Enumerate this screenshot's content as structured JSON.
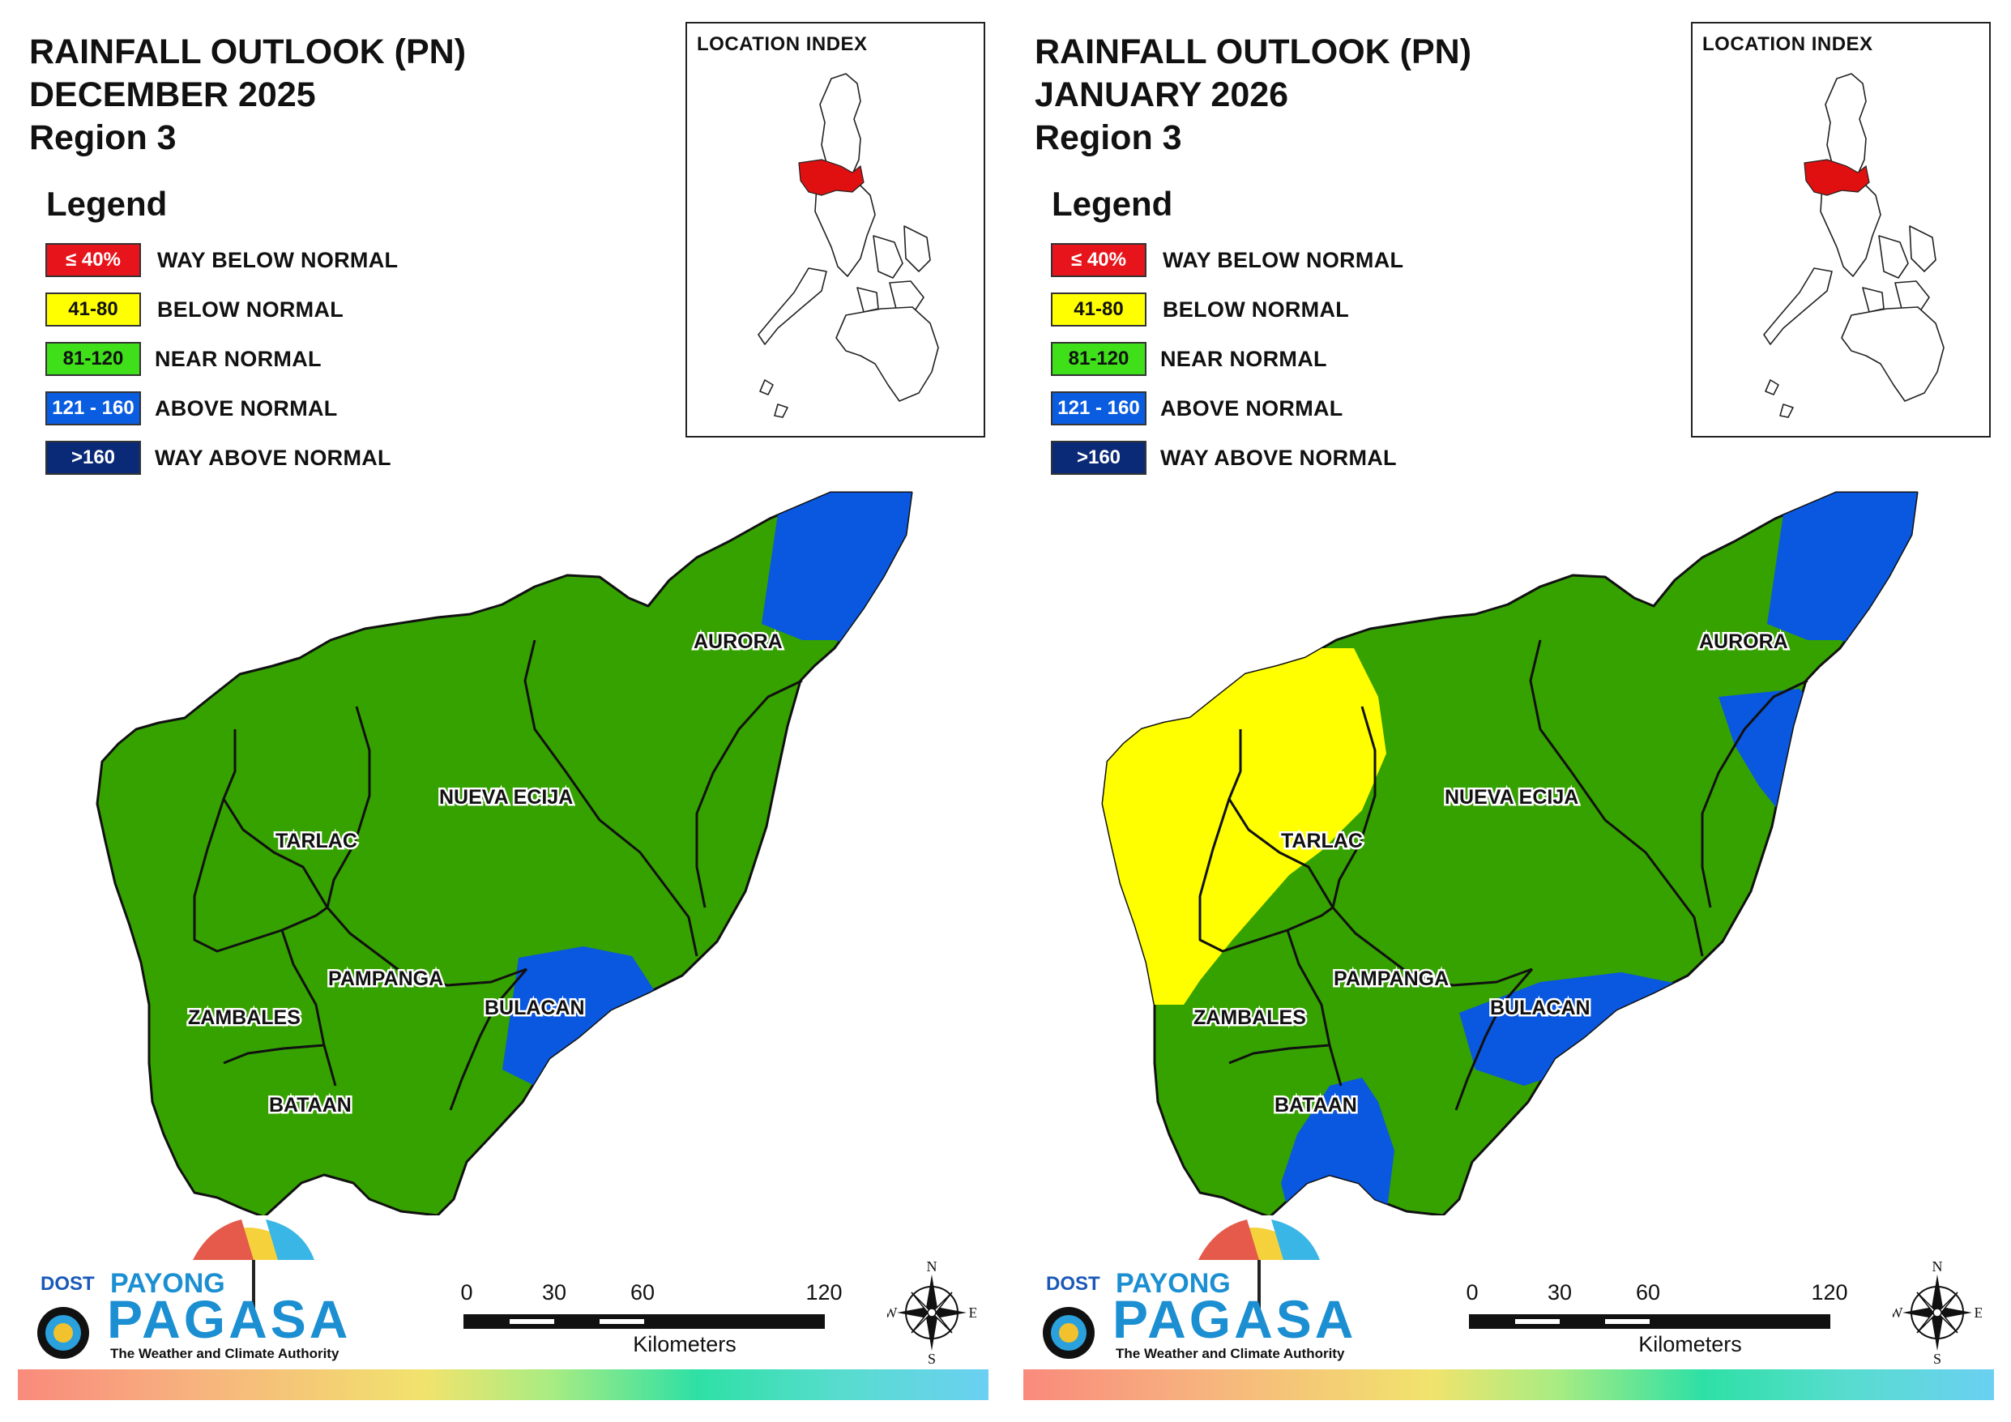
{
  "panels": [
    {
      "title": {
        "line1": "RAINFALL OUTLOOK (PN)",
        "line2": "DECEMBER 2025",
        "line3": "Region 3"
      },
      "provinces": {
        "tarlac": "green",
        "nueva_ecija": "green",
        "pampanga": "green",
        "zambales": "green",
        "bataan": "green",
        "bulacan": "green",
        "aurora": "green"
      },
      "overlays": [
        "aurora_blue_north",
        "bulacan_blue"
      ]
    },
    {
      "title": {
        "line1": "RAINFALL OUTLOOK (PN)",
        "line2": "JANUARY 2026",
        "line3": "Region 3"
      },
      "provinces": {
        "tarlac": "green",
        "nueva_ecija": "green",
        "pampanga": "green",
        "zambales": "green",
        "bataan": "green",
        "bulacan": "green",
        "aurora": "green"
      },
      "overlays": [
        "aurora_blue_north",
        "aurora_blue_mid",
        "west_yellow",
        "bulacan_blue_wide",
        "bataan_blue"
      ]
    }
  ],
  "legend": {
    "title": "Legend",
    "items": [
      {
        "range": "≤ 40%",
        "label": "WAY BELOW NORMAL",
        "color": "#e8141b",
        "text_color": "#ffffff"
      },
      {
        "range": "41-80",
        "label": "BELOW NORMAL",
        "color": "#ffff00",
        "text_color": "#111111"
      },
      {
        "range": "81-120",
        "label": "NEAR NORMAL",
        "color": "#3fe01a",
        "text_color": "#111111"
      },
      {
        "range": "121 - 160",
        "label": "ABOVE NORMAL",
        "color": "#0a5de0",
        "text_color": "#ffffff"
      },
      {
        "range": ">160",
        "label": "WAY ABOVE NORMAL",
        "color": "#0a2a78",
        "text_color": "#ffffff"
      }
    ]
  },
  "inset": {
    "title": "LOCATION INDEX"
  },
  "province_labels": {
    "aurora": "AURORA",
    "nueva_ecija": "NUEVA ECIJA",
    "tarlac": "TARLAC",
    "pampanga": "PAMPANGA",
    "zambales": "ZAMBALES",
    "bulacan": "BULACAN",
    "bataan": "BATAAN"
  },
  "map_colors": {
    "green": "#36a200",
    "blue": "#0a57e0",
    "yellow": "#ffff00",
    "region_red": "#e01010"
  },
  "logo": {
    "dost": "DOST",
    "payong": "PAYONG",
    "pagasa": "PAGASA",
    "tagline": "The Weather and Climate Authority"
  },
  "scale_bar": {
    "ticks": [
      "0",
      "30",
      "60",
      "120"
    ],
    "unit": "Kilometers"
  },
  "compass": {
    "n": "N",
    "s": "S",
    "e": "E",
    "w": "W"
  }
}
